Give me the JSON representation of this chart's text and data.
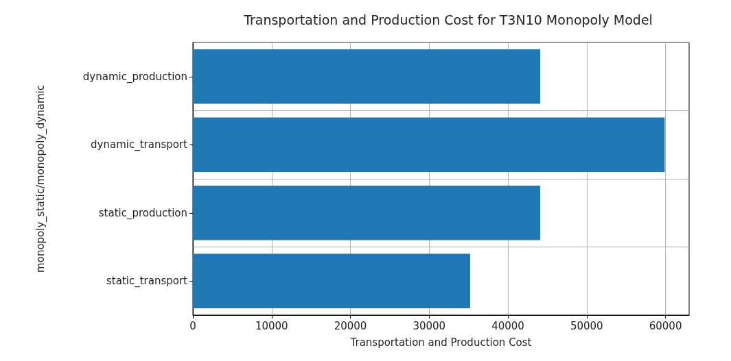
{
  "chart_data": {
    "type": "bar",
    "orientation": "horizontal",
    "title": "Transportation and Production Cost for T3N10 Monopoly Model",
    "xlabel": "Transportation and Production Cost",
    "ylabel": "monopoly_static/monopoly_dynamic",
    "categories": [
      "dynamic_production",
      "dynamic_transport",
      "static_production",
      "static_transport"
    ],
    "values": [
      44100,
      59900,
      44100,
      35200
    ],
    "color": "#1f77b4",
    "xlim": [
      0,
      63000
    ],
    "xticks": [
      0,
      10000,
      20000,
      30000,
      40000,
      50000,
      60000
    ],
    "grid": true
  }
}
